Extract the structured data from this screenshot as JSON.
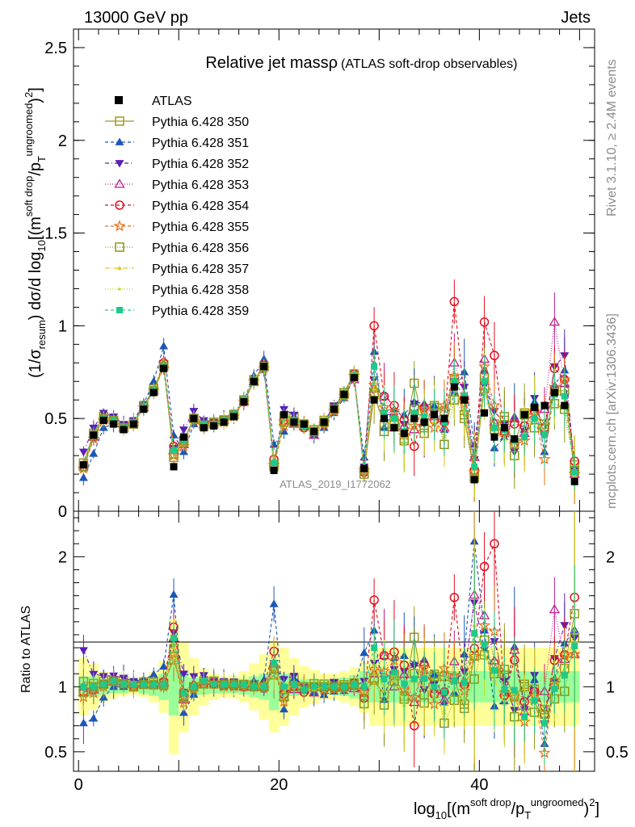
{
  "header": {
    "left": "13000 GeV pp",
    "right": "Jets"
  },
  "side_texts": {
    "rivet": "Rivet 3.1.10, ≥ 2.4M events",
    "mcplots": "mcplots.cern.ch [arXiv:1306.3436]"
  },
  "chart_data": [
    {
      "type": "scatter",
      "title": "Relative jet massρ",
      "subtitle": "(ATLAS soft-drop observables)",
      "watermark": "ATLAS_2019_I1772062",
      "xlabel": "log10[(m^soft drop/pT^ungroomed)^2]",
      "ylabel": "(1/σresum) dσ/d log10[(m^soft drop/pT^ungroomed)^2]",
      "xlim": [
        -0.5,
        51.5
      ],
      "ylim": [
        0,
        2.6
      ],
      "yticks": [
        "0",
        "0.5",
        "1",
        "1.5",
        "2",
        "2.5"
      ],
      "xticks": [
        "0",
        "20",
        "40"
      ],
      "legend_position": "top-left",
      "reference": {
        "name": "ATLAS",
        "x": [
          0.5,
          1.5,
          2.5,
          3.5,
          4.5,
          5.5,
          6.5,
          7.5,
          8.5,
          9.5,
          10.5,
          11.5,
          12.5,
          13.5,
          14.5,
          15.5,
          16.5,
          17.5,
          18.5,
          19.5,
          20.5,
          21.5,
          22.5,
          23.5,
          24.5,
          25.5,
          26.5,
          27.5,
          28.5,
          29.5,
          30.5,
          31.5,
          32.5,
          33.5,
          34.5,
          35.5,
          36.5,
          37.5,
          38.5,
          39.5,
          40.5,
          41.5,
          42.5,
          43.5,
          44.5,
          45.5,
          46.5,
          47.5,
          48.5,
          49.5
        ],
        "y": [
          0.25,
          0.41,
          0.49,
          0.47,
          0.44,
          0.47,
          0.55,
          0.64,
          0.77,
          0.24,
          0.4,
          0.5,
          0.45,
          0.46,
          0.48,
          0.51,
          0.59,
          0.7,
          0.78,
          0.22,
          0.52,
          0.48,
          0.47,
          0.43,
          0.48,
          0.55,
          0.63,
          0.72,
          0.23,
          0.6,
          0.5,
          0.45,
          0.42,
          0.5,
          0.48,
          0.52,
          0.5,
          0.67,
          0.6,
          0.17,
          0.53,
          0.4,
          0.45,
          0.39,
          0.52,
          0.56,
          0.57,
          0.64,
          0.57,
          0.16
        ]
      },
      "series": [
        {
          "name": "Pythia 6.428 350",
          "color": "#9a9a22",
          "dash": "",
          "marker": "square-open",
          "y": [
            0.26,
            0.42,
            0.51,
            0.49,
            0.46,
            0.48,
            0.57,
            0.66,
            0.79,
            0.29,
            0.38,
            0.5,
            0.47,
            0.47,
            0.49,
            0.52,
            0.6,
            0.71,
            0.78,
            0.24,
            0.51,
            0.51,
            0.46,
            0.44,
            0.49,
            0.56,
            0.64,
            0.74,
            0.22,
            0.63,
            0.47,
            0.49,
            0.39,
            0.69,
            0.45,
            0.57,
            0.54,
            0.71,
            0.5,
            0.21,
            0.66,
            0.47,
            0.49,
            0.36,
            0.53,
            0.55,
            0.47,
            0.65,
            0.65,
            0.25
          ]
        },
        {
          "name": "Pythia 6.428 351",
          "color": "#1b57b8",
          "dash": "4,3",
          "marker": "triangle-up",
          "y": [
            0.18,
            0.31,
            0.45,
            0.47,
            0.44,
            0.49,
            0.58,
            0.7,
            0.89,
            0.41,
            0.32,
            0.47,
            0.48,
            0.47,
            0.48,
            0.51,
            0.6,
            0.73,
            0.82,
            0.36,
            0.43,
            0.51,
            0.47,
            0.41,
            0.45,
            0.53,
            0.61,
            0.72,
            0.29,
            0.86,
            0.45,
            0.55,
            0.52,
            0.59,
            0.58,
            0.57,
            0.44,
            0.64,
            0.75,
            0.36,
            0.76,
            0.34,
            0.4,
            0.51,
            0.44,
            0.59,
            0.32,
            0.68,
            0.76,
            0.23
          ]
        },
        {
          "name": "Pythia 6.428 352",
          "color": "#5a1fb5",
          "dash": "5,3,1,3",
          "marker": "triangle-down",
          "y": [
            0.32,
            0.45,
            0.53,
            0.51,
            0.47,
            0.49,
            0.57,
            0.65,
            0.78,
            0.34,
            0.44,
            0.54,
            0.49,
            0.48,
            0.5,
            0.53,
            0.6,
            0.7,
            0.76,
            0.26,
            0.55,
            0.52,
            0.47,
            0.42,
            0.48,
            0.57,
            0.63,
            0.72,
            0.24,
            0.71,
            0.53,
            0.51,
            0.47,
            0.58,
            0.47,
            0.53,
            0.47,
            0.7,
            0.67,
            0.28,
            0.68,
            0.54,
            0.47,
            0.32,
            0.43,
            0.61,
            0.41,
            0.78,
            0.84,
            0.22
          ]
        },
        {
          "name": "Pythia 6.428 353",
          "color": "#c21e8e",
          "dash": "1,2",
          "marker": "triangle-up-open",
          "y": [
            0.25,
            0.4,
            0.5,
            0.49,
            0.45,
            0.48,
            0.56,
            0.65,
            0.79,
            0.33,
            0.36,
            0.51,
            0.47,
            0.48,
            0.49,
            0.52,
            0.59,
            0.7,
            0.78,
            0.26,
            0.51,
            0.47,
            0.46,
            0.41,
            0.48,
            0.55,
            0.63,
            0.71,
            0.23,
            0.66,
            0.62,
            0.45,
            0.46,
            0.44,
            0.57,
            0.51,
            0.45,
            0.8,
            0.62,
            0.29,
            0.82,
            0.48,
            0.43,
            0.5,
            0.42,
            0.54,
            0.55,
            1.02,
            0.69,
            0.2
          ]
        },
        {
          "name": "Pythia 6.428 354",
          "color": "#e0101f",
          "dash": "4,3",
          "marker": "circle-open",
          "y": [
            0.24,
            0.4,
            0.5,
            0.49,
            0.45,
            0.47,
            0.56,
            0.65,
            0.8,
            0.35,
            0.38,
            0.5,
            0.46,
            0.47,
            0.49,
            0.52,
            0.59,
            0.7,
            0.79,
            0.28,
            0.49,
            0.48,
            0.45,
            0.43,
            0.47,
            0.54,
            0.63,
            0.74,
            0.21,
            1.0,
            0.62,
            0.57,
            0.49,
            0.35,
            0.56,
            0.49,
            0.48,
            1.13,
            0.61,
            0.22,
            1.02,
            0.84,
            0.42,
            0.47,
            0.46,
            0.54,
            0.45,
            0.77,
            0.71,
            0.27
          ]
        },
        {
          "name": "Pythia 6.428 355",
          "color": "#e86e18",
          "dash": "4,3",
          "marker": "star-open",
          "y": [
            0.23,
            0.39,
            0.49,
            0.49,
            0.45,
            0.47,
            0.56,
            0.65,
            0.77,
            0.3,
            0.35,
            0.49,
            0.46,
            0.47,
            0.48,
            0.51,
            0.59,
            0.7,
            0.77,
            0.25,
            0.46,
            0.49,
            0.47,
            0.43,
            0.47,
            0.54,
            0.62,
            0.73,
            0.22,
            0.68,
            0.56,
            0.54,
            0.41,
            0.46,
            0.55,
            0.45,
            0.57,
            0.73,
            0.58,
            0.21,
            0.78,
            0.57,
            0.43,
            0.36,
            0.38,
            0.52,
            0.28,
            0.67,
            0.71,
            0.2
          ]
        },
        {
          "name": "Pythia 6.428 356",
          "color": "#8e9416",
          "dash": "1,2",
          "marker": "square-open",
          "y": [
            0.24,
            0.41,
            0.5,
            0.49,
            0.45,
            0.47,
            0.56,
            0.65,
            0.78,
            0.31,
            0.37,
            0.5,
            0.46,
            0.48,
            0.49,
            0.52,
            0.6,
            0.7,
            0.78,
            0.25,
            0.48,
            0.48,
            0.47,
            0.43,
            0.48,
            0.55,
            0.63,
            0.73,
            0.2,
            0.64,
            0.43,
            0.47,
            0.38,
            0.55,
            0.42,
            0.56,
            0.36,
            0.6,
            0.52,
            0.18,
            0.72,
            0.44,
            0.51,
            0.3,
            0.52,
            0.45,
            0.45,
            0.58,
            0.55,
            0.22
          ]
        },
        {
          "name": "Pythia 6.428 357",
          "color": "#e8c81c",
          "dash": "6,2,1,2",
          "marker": "tri-small",
          "y": [
            0.25,
            0.41,
            0.5,
            0.49,
            0.45,
            0.48,
            0.56,
            0.65,
            0.79,
            0.32,
            0.37,
            0.5,
            0.47,
            0.47,
            0.49,
            0.52,
            0.6,
            0.71,
            0.78,
            0.26,
            0.5,
            0.49,
            0.46,
            0.42,
            0.48,
            0.55,
            0.63,
            0.73,
            0.22,
            0.7,
            0.49,
            0.47,
            0.36,
            0.52,
            0.48,
            0.48,
            0.4,
            0.66,
            0.54,
            0.25,
            0.66,
            0.42,
            0.39,
            0.38,
            0.39,
            0.53,
            0.42,
            0.63,
            0.62,
            0.23
          ]
        },
        {
          "name": "Pythia 6.428 358",
          "color": "#c8d828",
          "dash": "1,2",
          "marker": "dot",
          "y": [
            0.25,
            0.41,
            0.5,
            0.49,
            0.45,
            0.48,
            0.56,
            0.65,
            0.79,
            0.32,
            0.37,
            0.51,
            0.47,
            0.47,
            0.49,
            0.52,
            0.6,
            0.7,
            0.78,
            0.25,
            0.51,
            0.49,
            0.46,
            0.43,
            0.48,
            0.55,
            0.63,
            0.73,
            0.23,
            0.72,
            0.5,
            0.49,
            0.37,
            0.53,
            0.5,
            0.5,
            0.41,
            0.65,
            0.55,
            0.22,
            0.67,
            0.43,
            0.4,
            0.37,
            0.42,
            0.55,
            0.42,
            0.63,
            0.65,
            0.25
          ]
        },
        {
          "name": "Pythia 6.428 359",
          "color": "#1fc98a",
          "dash": "4,3",
          "marker": "square",
          "y": [
            0.25,
            0.41,
            0.5,
            0.49,
            0.45,
            0.48,
            0.56,
            0.65,
            0.78,
            0.33,
            0.38,
            0.5,
            0.47,
            0.47,
            0.49,
            0.52,
            0.6,
            0.7,
            0.78,
            0.26,
            0.52,
            0.49,
            0.46,
            0.43,
            0.48,
            0.55,
            0.63,
            0.73,
            0.23,
            0.78,
            0.53,
            0.5,
            0.43,
            0.53,
            0.51,
            0.52,
            0.48,
            0.7,
            0.62,
            0.24,
            0.7,
            0.45,
            0.44,
            0.38,
            0.4,
            0.5,
            0.41,
            0.63,
            0.62,
            0.21
          ]
        }
      ]
    },
    {
      "type": "scatter",
      "title": "",
      "ylabel": "Ratio to ATLAS",
      "ylim": [
        0.35,
        2.35
      ],
      "yticks": [
        "0.5",
        "1",
        "2"
      ],
      "reference_line": 1,
      "band_inner_color": "#99ff99",
      "band_outer_color": "#ffff99",
      "band_inner_halfwidth": [
        0.08,
        0.08,
        0.06,
        0.05,
        0.05,
        0.04,
        0.05,
        0.07,
        0.1,
        0.22,
        0.12,
        0.07,
        0.06,
        0.05,
        0.05,
        0.05,
        0.06,
        0.08,
        0.1,
        0.18,
        0.1,
        0.07,
        0.06,
        0.06,
        0.05,
        0.06,
        0.07,
        0.09,
        0.12,
        0.12,
        0.12,
        0.12,
        0.12,
        0.12,
        0.12,
        0.12,
        0.12,
        0.12,
        0.12,
        0.12,
        0.12,
        0.12,
        0.12,
        0.12,
        0.12,
        0.12,
        0.12,
        0.12,
        0.12,
        0.12
      ],
      "band_outer_halfwidth": [
        0.22,
        0.18,
        0.12,
        0.09,
        0.07,
        0.06,
        0.08,
        0.12,
        0.2,
        0.52,
        0.35,
        0.22,
        0.14,
        0.1,
        0.08,
        0.09,
        0.12,
        0.18,
        0.25,
        0.35,
        0.3,
        0.22,
        0.16,
        0.13,
        0.1,
        0.1,
        0.12,
        0.15,
        0.2,
        0.3,
        0.3,
        0.3,
        0.3,
        0.3,
        0.3,
        0.3,
        0.3,
        0.3,
        0.3,
        0.3,
        0.3,
        0.3,
        0.3,
        0.3,
        0.3,
        0.3,
        0.3,
        0.3,
        0.3,
        0.3
      ]
    }
  ]
}
